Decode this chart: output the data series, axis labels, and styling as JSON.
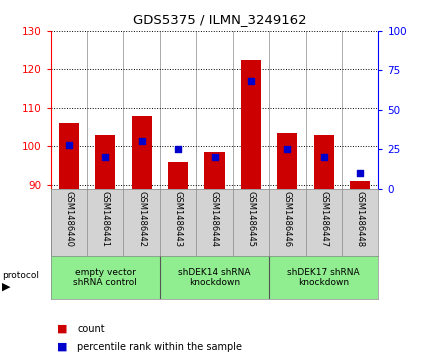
{
  "title": "GDS5375 / ILMN_3249162",
  "samples": [
    "GSM1486440",
    "GSM1486441",
    "GSM1486442",
    "GSM1486443",
    "GSM1486444",
    "GSM1486445",
    "GSM1486446",
    "GSM1486447",
    "GSM1486448"
  ],
  "counts": [
    106.0,
    103.0,
    108.0,
    96.0,
    98.5,
    122.5,
    103.5,
    103.0,
    91.0
  ],
  "percentile_ranks": [
    28,
    20,
    30,
    25,
    20,
    68,
    25,
    20,
    10
  ],
  "ylim_left": [
    89,
    130
  ],
  "ylim_right": [
    0,
    100
  ],
  "yticks_left": [
    90,
    100,
    110,
    120,
    130
  ],
  "yticks_right": [
    0,
    25,
    50,
    75,
    100
  ],
  "groups": [
    {
      "label": "empty vector\nshRNA control",
      "start": 0,
      "end": 3
    },
    {
      "label": "shDEK14 shRNA\nknockdown",
      "start": 3,
      "end": 6
    },
    {
      "label": "shDEK17 shRNA\nknockdown",
      "start": 6,
      "end": 9
    }
  ],
  "bar_color": "#CC0000",
  "dot_color": "#0000CC",
  "bar_bottom": 89,
  "legend_count_label": "count",
  "legend_pct_label": "percentile rank within the sample"
}
